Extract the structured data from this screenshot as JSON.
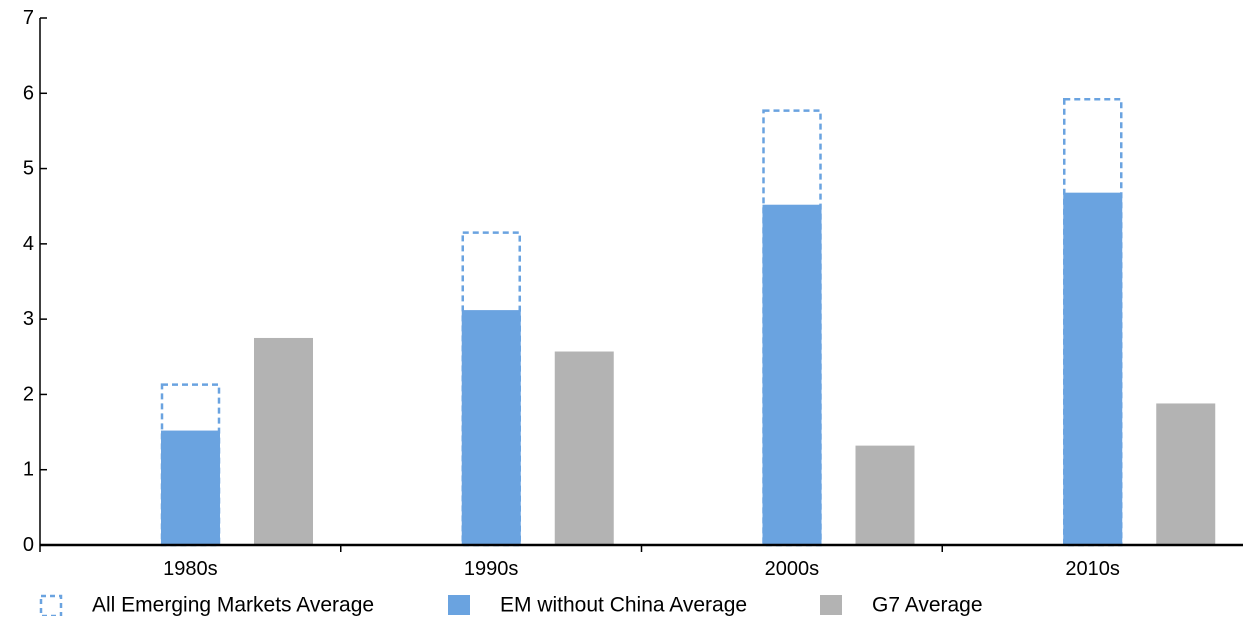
{
  "chart_data": {
    "type": "bar",
    "categories": [
      "1980s",
      "1990s",
      "2000s",
      "2010s"
    ],
    "series": [
      {
        "name": "All Emerging Markets Average",
        "values": [
          2.13,
          4.15,
          5.77,
          5.92
        ],
        "color": "#6aa3e0",
        "style": "dashed-outline"
      },
      {
        "name": "EM without China Average",
        "values": [
          1.52,
          3.12,
          4.52,
          4.68
        ],
        "color": "#6aa3e0",
        "style": "solid"
      },
      {
        "name": "G7 Average",
        "values": [
          2.75,
          2.57,
          1.32,
          1.88
        ],
        "color": "#b3b3b3",
        "style": "solid"
      }
    ],
    "yticks": [
      "0",
      "1",
      "2",
      "3",
      "4",
      "5",
      "6",
      "7"
    ],
    "ylim": [
      0,
      7
    ],
    "title": "",
    "xlabel": "",
    "ylabel": "",
    "grid": false,
    "legend_position": "bottom"
  }
}
